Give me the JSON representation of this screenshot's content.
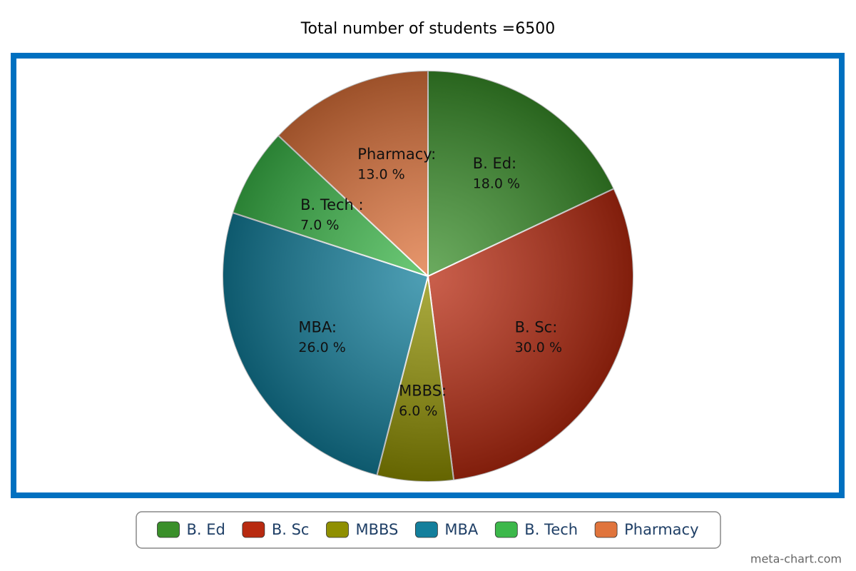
{
  "chart_data": {
    "type": "pie",
    "title": "Total number of students =6500",
    "categories": [
      "B. Ed",
      "B. Sc",
      "MBBS",
      "MBA",
      "B. Tech",
      "Pharmacy"
    ],
    "slice_labels": [
      "B. Ed:",
      "B. Sc:",
      "MBBS:",
      "MBA:",
      "B. Tech :",
      "Pharmacy:"
    ],
    "values": [
      18,
      30,
      6,
      26,
      7,
      13
    ],
    "value_labels": [
      "18.0 %",
      "30.0 %",
      "6.0 %",
      "26.0 %",
      "7.0 %",
      "13.0 %"
    ],
    "colors": [
      "#3a8f2a",
      "#b82a10",
      "#8f8f00",
      "#137f9c",
      "#3cb84a",
      "#e0743c"
    ],
    "watermark": "meta-chart.com"
  }
}
